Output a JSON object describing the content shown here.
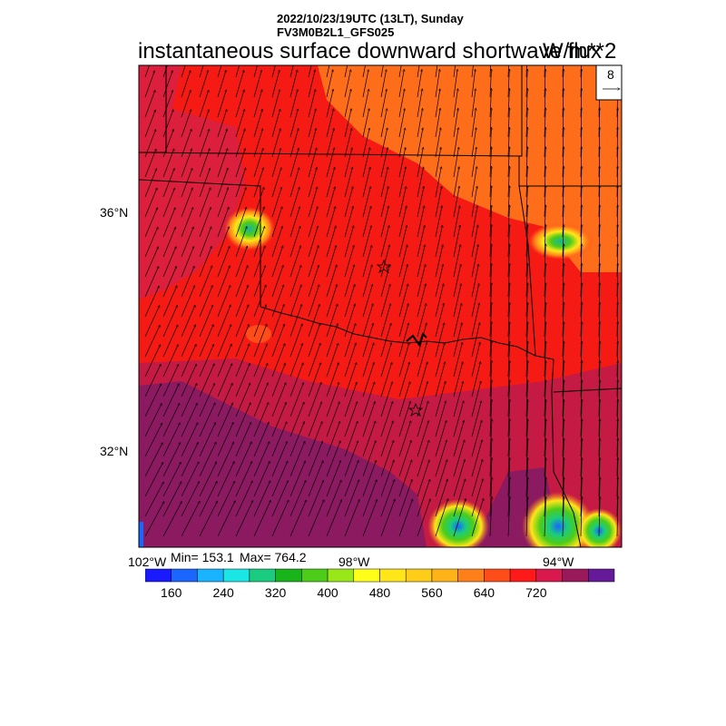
{
  "header": {
    "datetime": "2022/10/23/19UTC (13LT), Sunday",
    "model": "FV3M0B2L1_GFS025",
    "title": "instantaneous surface downward shortwave flux",
    "units": "W/m**2"
  },
  "map": {
    "lat_labels": [
      "36°N",
      "32°N"
    ],
    "lon_labels": [
      "102°W",
      "98°W",
      "94°W"
    ],
    "vector_reference": "8",
    "markers": [
      "star",
      "star"
    ]
  },
  "stats": {
    "min_label": "Min= 153.1",
    "max_label": "Max= 764.2"
  },
  "colorbar": {
    "colors": [
      "#1a1aff",
      "#1a66ff",
      "#19b3ff",
      "#1ae6e6",
      "#19cc80",
      "#19b31a",
      "#4dcc19",
      "#99e619",
      "#ffff1a",
      "#ffe619",
      "#ffcc19",
      "#ffb319",
      "#ff801a",
      "#ff4d19",
      "#ff1a1a",
      "#d9194d",
      "#99195c",
      "#661a99"
    ],
    "tick_labels": [
      "160",
      "240",
      "320",
      "400",
      "480",
      "560",
      "640",
      "720"
    ]
  }
}
